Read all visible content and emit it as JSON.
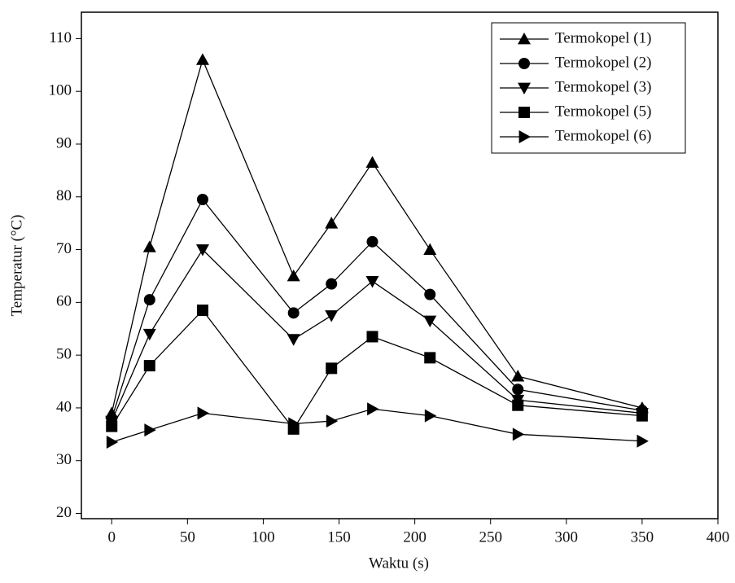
{
  "chart_data": {
    "type": "line",
    "x_label": "Waktu (s)",
    "y_label": "Temperatur (°C)",
    "x": [
      0,
      25,
      60,
      120,
      145,
      172,
      210,
      268,
      350
    ],
    "series": [
      {
        "name": "Termokopel (1)",
        "color": "#000000",
        "marker": "triangle-up",
        "values": [
          39,
          70.5,
          106,
          65,
          75,
          86.5,
          70,
          46,
          40
        ]
      },
      {
        "name": "Termokopel (2)",
        "color": "#000000",
        "marker": "circle",
        "values": [
          38,
          60.5,
          79.5,
          58,
          63.5,
          71.5,
          61.5,
          43.5,
          39.5
        ]
      },
      {
        "name": "Termokopel (3)",
        "color": "#000000",
        "marker": "triangle-down",
        "values": [
          37.5,
          54,
          70,
          53,
          57.5,
          64,
          56.5,
          41.5,
          39
        ]
      },
      {
        "name": "Termokopel (5)",
        "color": "#000000",
        "marker": "square",
        "values": [
          36.5,
          48,
          58.5,
          36,
          47.5,
          53.5,
          49.5,
          40.5,
          38.5
        ]
      },
      {
        "name": "Termokopel (6)",
        "color": "#000000",
        "marker": "triangle-right",
        "values": [
          33.5,
          35.8,
          39,
          37,
          37.5,
          39.8,
          38.5,
          35,
          33.7
        ]
      }
    ],
    "xlim": [
      -20,
      400
    ],
    "xticks": [
      0,
      50,
      100,
      150,
      200,
      250,
      300,
      350,
      400
    ],
    "ylim": [
      19,
      115
    ],
    "yticks": [
      20,
      30,
      40,
      50,
      60,
      70,
      80,
      90,
      100,
      110
    ],
    "legend_position": "upper right"
  }
}
